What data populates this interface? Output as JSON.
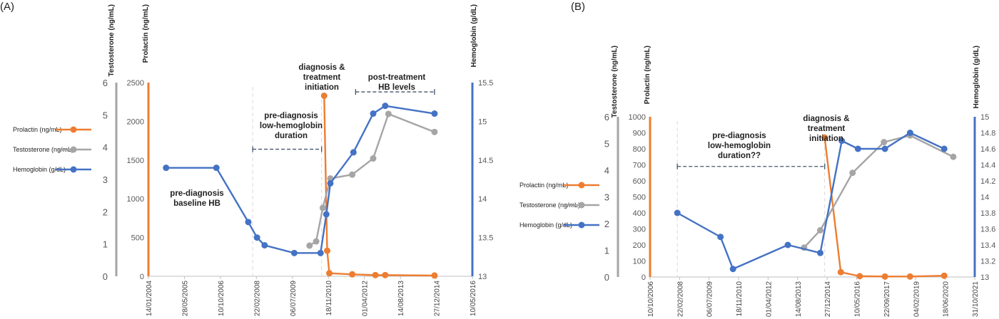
{
  "chart_data": [
    {
      "panel": "(A)",
      "type": "line",
      "x_ticks": [
        "14/01/2004",
        "28/05/2005",
        "10/10/2006",
        "22/02/2008",
        "06/07/2009",
        "18/11/2010",
        "01/04/2012",
        "14/08/2013",
        "27/12/2014",
        "10/05/2016"
      ],
      "axes": {
        "testosterone": {
          "label": "Testosterone (ng/mL)",
          "min": 0,
          "max": 6,
          "ticks": [
            "0",
            "1",
            "2",
            "3",
            "4",
            "5",
            "6"
          ],
          "color": "#a5a5a5"
        },
        "prolactin": {
          "label": "Prolactin (ng/mL)",
          "min": 0,
          "max": 2500,
          "ticks": [
            "0",
            "500",
            "1000",
            "1500",
            "2000",
            "2500"
          ],
          "color": "#ed7d31"
        },
        "hemoglobin": {
          "label": "Hemoglobin (g/dL)",
          "min": 13,
          "max": 15.5,
          "ticks": [
            "13",
            "13.5",
            "14",
            "14.5",
            "15",
            "15.5"
          ],
          "color": "#4472c4"
        }
      },
      "legend": [
        {
          "name": "Prolactin (ng/mL)",
          "color": "#ed7d31"
        },
        {
          "name": "Testosterone (ng/mL)",
          "color": "#a5a5a5"
        },
        {
          "name": "Hemoglobin (g/dL)",
          "color": "#4472c4"
        }
      ],
      "series": [
        {
          "name": "Prolactin (ng/mL)",
          "axis": "prolactin",
          "color": "#ed7d31",
          "points": [
            [
              "2010-09-20",
              2330
            ],
            [
              "2010-11-01",
              330
            ],
            [
              "2010-12-01",
              40
            ],
            [
              "2011-10-15",
              25
            ],
            [
              "2012-09-01",
              15
            ],
            [
              "2013-01-15",
              15
            ],
            [
              "2014-12-01",
              10
            ]
          ]
        },
        {
          "name": "Testosterone (ng/mL)",
          "axis": "testosterone",
          "color": "#a5a5a5",
          "points": [
            [
              "2010-03-01",
              0.95
            ],
            [
              "2010-06-01",
              1.08
            ],
            [
              "2010-09-01",
              2.12
            ],
            [
              "2010-12-15",
              3.03
            ],
            [
              "2011-10-15",
              3.15
            ],
            [
              "2012-08-01",
              3.65
            ],
            [
              "2013-03-01",
              5.03
            ],
            [
              "2014-12-01",
              4.47
            ]
          ]
        },
        {
          "name": "Hemoglobin (g/dL)",
          "axis": "hemoglobin",
          "color": "#4472c4",
          "points": [
            [
              "2004-09-15",
              14.4
            ],
            [
              "2006-08-15",
              14.4
            ],
            [
              "2007-11-01",
              13.7
            ],
            [
              "2008-03-01",
              13.5
            ],
            [
              "2008-06-15",
              13.4
            ],
            [
              "2009-08-01",
              13.3
            ],
            [
              "2010-08-01",
              13.3
            ],
            [
              "2010-10-20",
              13.8
            ],
            [
              "2010-12-15",
              14.2
            ],
            [
              "2011-11-01",
              14.6
            ],
            [
              "2012-08-01",
              15.1
            ],
            [
              "2013-01-15",
              15.2
            ],
            [
              "2014-12-01",
              15.1
            ]
          ]
        }
      ],
      "annotations": [
        {
          "text": "pre-diagnosis baseline HB",
          "lines": [
            "pre-diagnosis",
            "baseline HB"
          ]
        },
        {
          "text": "pre-diagnosis low-hemoglobin duration",
          "lines": [
            "pre-diagnosis",
            "low-hemoglobin",
            "duration"
          ]
        },
        {
          "text": "diagnosis & treatment initiation",
          "lines": [
            "diagnosis &",
            "treatment",
            "initiation"
          ]
        },
        {
          "text": "post-treatment HB levels",
          "lines": [
            "post-treatment",
            "HB levels"
          ]
        }
      ],
      "spans": [
        {
          "from": "2008-01-01",
          "to": "2010-08-15",
          "hb": 14.64
        },
        {
          "from": "2011-12-01",
          "to": "2014-12-01",
          "hb": 15.38
        }
      ],
      "dashed_markers": [
        "2008-01-01",
        "2010-08-15"
      ]
    },
    {
      "panel": "(B)",
      "type": "line",
      "x_ticks": [
        "10/10/2006",
        "22/02/2008",
        "06/07/2009",
        "18/11/2010",
        "01/04/2012",
        "14/08/2013",
        "27/12/2014",
        "10/05/2016",
        "22/09/2017",
        "04/02/2019",
        "18/06/2020",
        "31/10/2021"
      ],
      "axes": {
        "testosterone": {
          "label": "Testosterone (ng/mL)",
          "min": 0,
          "max": 6,
          "ticks": [
            "0",
            "1",
            "2",
            "3",
            "4",
            "5",
            "6"
          ],
          "color": "#a5a5a5"
        },
        "prolactin": {
          "label": "Prolactin (ng/mL)",
          "min": 0,
          "max": 1000,
          "ticks": [
            "0",
            "100",
            "200",
            "300",
            "400",
            "500",
            "600",
            "700",
            "800",
            "900",
            "1000"
          ],
          "color": "#ed7d31"
        },
        "hemoglobin": {
          "label": "Hemoglobin (g/dL)",
          "min": 13,
          "max": 15,
          "ticks": [
            "13",
            "13.2",
            "13.4",
            "13.6",
            "13.8",
            "14",
            "14.2",
            "14.4",
            "14.6",
            "14.8",
            "15"
          ],
          "color": "#4472c4"
        }
      },
      "legend": [
        {
          "name": "Prolactin (ng/mL)",
          "color": "#ed7d31"
        },
        {
          "name": "Testosterone (ng/mL)",
          "color": "#a5a5a5"
        },
        {
          "name": "Hemoglobin (g/dL)",
          "color": "#4472c4"
        }
      ],
      "series": [
        {
          "name": "Prolactin (ng/mL)",
          "axis": "prolactin",
          "color": "#ed7d31",
          "points": [
            [
              "2014-11-15",
              870
            ],
            [
              "2015-08-15",
              30
            ],
            [
              "2016-07-01",
              5
            ],
            [
              "2017-09-01",
              3
            ],
            [
              "2018-11-01",
              3
            ],
            [
              "2020-06-01",
              8
            ]
          ]
        },
        {
          "name": "Testosterone (ng/mL)",
          "axis": "testosterone",
          "color": "#a5a5a5",
          "points": [
            [
              "2013-12-01",
              1.1
            ],
            [
              "2014-09-01",
              1.75
            ],
            [
              "2016-03-01",
              3.9
            ],
            [
              "2017-08-15",
              5.05
            ],
            [
              "2018-11-01",
              5.3
            ],
            [
              "2020-11-01",
              4.5
            ]
          ]
        },
        {
          "name": "Hemoglobin (g/dL)",
          "axis": "hemoglobin",
          "color": "#4472c4",
          "points": [
            [
              "2008-01-15",
              13.8
            ],
            [
              "2010-01-15",
              13.5
            ],
            [
              "2010-08-15",
              13.1
            ],
            [
              "2013-03-01",
              13.4
            ],
            [
              "2014-09-01",
              13.3
            ],
            [
              "2015-09-01",
              14.7
            ],
            [
              "2016-06-01",
              14.6
            ],
            [
              "2017-09-01",
              14.6
            ],
            [
              "2018-11-01",
              14.8
            ],
            [
              "2020-06-01",
              14.6
            ]
          ]
        }
      ],
      "annotations": [
        {
          "text": "pre-diagnosis low-hemoglobin duration??",
          "lines": [
            "pre-diagnosis",
            "low-hemoglobin",
            "duration??"
          ]
        },
        {
          "text": "diagnosis & treatment initiation",
          "lines": [
            "diagnosis &",
            "treatment",
            "initiation"
          ]
        }
      ],
      "spans": [
        {
          "from": "2008-01-15",
          "to": "2014-11-15",
          "hb": 14.38
        }
      ],
      "dashed_markers": [
        "2008-01-15",
        "2014-11-15"
      ]
    }
  ]
}
